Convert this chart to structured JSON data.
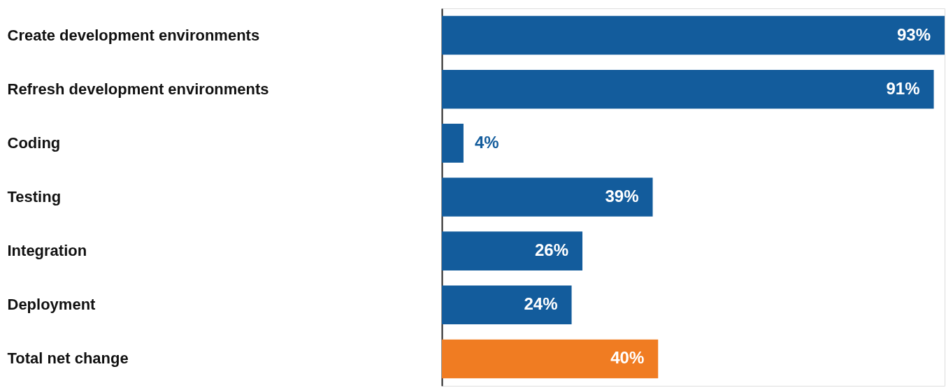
{
  "chart_data": {
    "type": "bar",
    "orientation": "horizontal",
    "categories": [
      "Create development environments",
      "Refresh development environments",
      "Coding",
      "Testing",
      "Integration",
      "Deployment",
      "Total net change"
    ],
    "values": [
      93,
      91,
      4,
      39,
      26,
      24,
      40
    ],
    "colors": [
      "#135c9c",
      "#135c9c",
      "#135c9c",
      "#135c9c",
      "#135c9c",
      "#135c9c",
      "#f07c22"
    ],
    "value_labels": [
      "93%",
      "91%",
      "4%",
      "39%",
      "26%",
      "24%",
      "40%"
    ],
    "xlim": [
      0,
      93
    ],
    "tick_labels": "y"
  }
}
